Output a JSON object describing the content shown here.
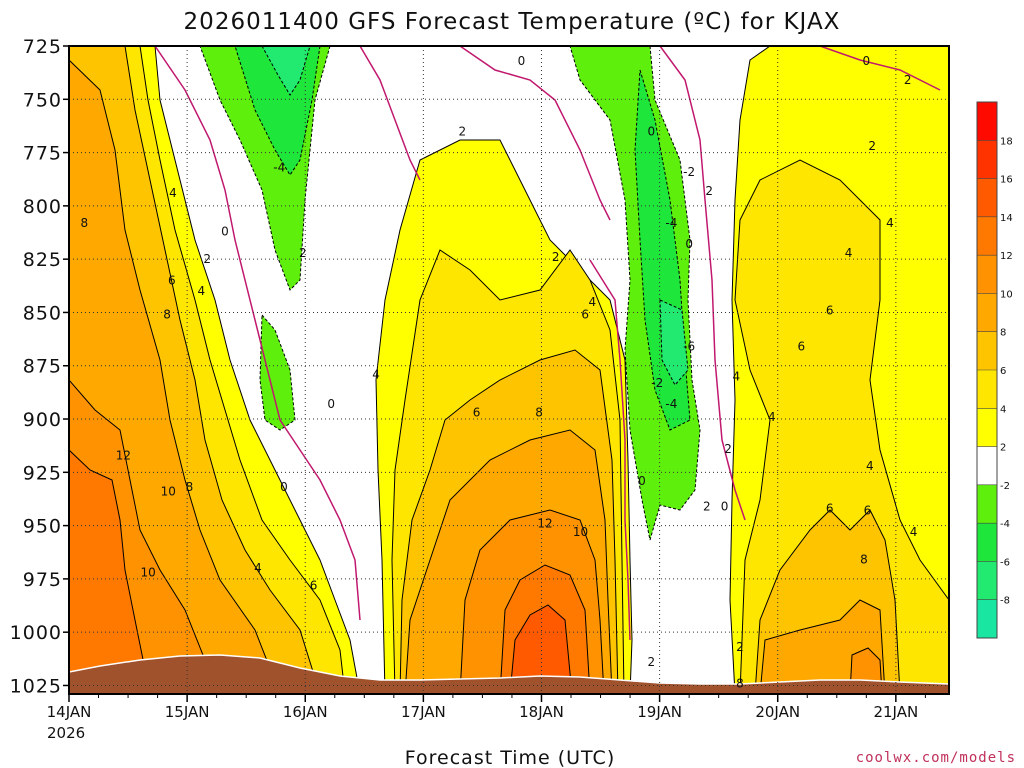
{
  "chart_data": {
    "type": "heatmap",
    "title": "2026011400 GFS Forecast Temperature (ºC) for KJAX",
    "xlabel": "Forecast Time (UTC)",
    "ylabel": "",
    "credit": "coolwx.com/models",
    "x_ticks": [
      "14JAN",
      "15JAN",
      "16JAN",
      "17JAN",
      "18JAN",
      "19JAN",
      "20JAN",
      "21JAN"
    ],
    "x_year_label": "2026",
    "x_range_days": [
      0,
      7.45
    ],
    "y_ticks": [
      725,
      750,
      775,
      800,
      825,
      850,
      875,
      900,
      925,
      950,
      975,
      1000,
      1025
    ],
    "y_range_hpa": [
      725,
      1029
    ],
    "grid": true,
    "colorbar": {
      "levels": [
        -10,
        -8,
        -6,
        -4,
        -2,
        2,
        4,
        6,
        8,
        10,
        12,
        14,
        16,
        18,
        20
      ],
      "tick_labels": [
        "-8",
        "-6",
        "-4",
        "-2",
        "2",
        "4",
        "6",
        "8",
        "10",
        "12",
        "14",
        "16",
        "18"
      ],
      "colors": [
        "#19e6a0",
        "#22ea70",
        "#1ee63a",
        "#5ef00c",
        "#ffffff",
        "#ffff00",
        "#ffe600",
        "#ffc400",
        "#ffa800",
        "#ff9200",
        "#ff7800",
        "#ff5a00",
        "#ff3300",
        "#ff0a00"
      ]
    },
    "contour_labels": [
      {
        "text": "0",
        "day": 1.32,
        "p": 812
      },
      {
        "text": "0",
        "day": 1.82,
        "p": 932
      },
      {
        "text": "0",
        "day": 2.22,
        "p": 893
      },
      {
        "text": "0",
        "day": 3.83,
        "p": 732
      },
      {
        "text": "0",
        "day": 4.93,
        "p": 765
      },
      {
        "text": "0",
        "day": 5.25,
        "p": 818
      },
      {
        "text": "0",
        "day": 4.85,
        "p": 929
      },
      {
        "text": "0",
        "day": 5.55,
        "p": 941
      },
      {
        "text": "0",
        "day": 6.75,
        "p": 732
      },
      {
        "text": "-4",
        "day": 1.78,
        "p": 782
      },
      {
        "text": "-4",
        "day": 5.1,
        "p": 808
      },
      {
        "text": "-4",
        "day": 5.1,
        "p": 893
      },
      {
        "text": "-2",
        "day": 5.25,
        "p": 784
      },
      {
        "text": "-2",
        "day": 4.98,
        "p": 883
      },
      {
        "text": "-6",
        "day": 5.25,
        "p": 866
      },
      {
        "text": "2",
        "day": 1.17,
        "p": 825
      },
      {
        "text": "2",
        "day": 1.98,
        "p": 822
      },
      {
        "text": "2",
        "day": 3.33,
        "p": 765
      },
      {
        "text": "2",
        "day": 4.12,
        "p": 824
      },
      {
        "text": "2",
        "day": 5.42,
        "p": 793
      },
      {
        "text": "2",
        "day": 5.58,
        "p": 914
      },
      {
        "text": "2",
        "day": 6.8,
        "p": 772
      },
      {
        "text": "2",
        "day": 7.1,
        "p": 741
      },
      {
        "text": "2",
        "day": 5.4,
        "p": 941
      },
      {
        "text": "2",
        "day": 4.93,
        "p": 1014
      },
      {
        "text": "2",
        "day": 5.68,
        "p": 1007
      },
      {
        "text": "4",
        "day": 0.88,
        "p": 794
      },
      {
        "text": "4",
        "day": 1.12,
        "p": 840
      },
      {
        "text": "4",
        "day": 2.6,
        "p": 879
      },
      {
        "text": "4",
        "day": 4.43,
        "p": 845
      },
      {
        "text": "4",
        "day": 5.95,
        "p": 899
      },
      {
        "text": "4",
        "day": 6.6,
        "p": 822
      },
      {
        "text": "4",
        "day": 6.78,
        "p": 922
      },
      {
        "text": "4",
        "day": 6.95,
        "p": 808
      },
      {
        "text": "4",
        "day": 7.15,
        "p": 953
      },
      {
        "text": "4",
        "day": 5.65,
        "p": 880
      },
      {
        "text": "4",
        "day": 1.6,
        "p": 970
      },
      {
        "text": "6",
        "day": 0.87,
        "p": 835
      },
      {
        "text": "6",
        "day": 3.45,
        "p": 897
      },
      {
        "text": "6",
        "day": 4.37,
        "p": 851
      },
      {
        "text": "6",
        "day": 6.2,
        "p": 866
      },
      {
        "text": "6",
        "day": 6.44,
        "p": 849
      },
      {
        "text": "6",
        "day": 6.44,
        "p": 942
      },
      {
        "text": "6",
        "day": 6.76,
        "p": 943
      },
      {
        "text": "6",
        "day": 2.07,
        "p": 978
      },
      {
        "text": "8",
        "day": 0.13,
        "p": 808
      },
      {
        "text": "8",
        "day": 0.83,
        "p": 851
      },
      {
        "text": "8",
        "day": 3.98,
        "p": 897
      },
      {
        "text": "8",
        "day": 1.02,
        "p": 932
      },
      {
        "text": "8",
        "day": 6.73,
        "p": 966
      },
      {
        "text": "8",
        "day": 5.68,
        "p": 1024
      },
      {
        "text": "10",
        "day": 0.84,
        "p": 934
      },
      {
        "text": "10",
        "day": 4.33,
        "p": 953
      },
      {
        "text": "10",
        "day": 0.67,
        "p": 972
      },
      {
        "text": "12",
        "day": 0.46,
        "p": 917
      },
      {
        "text": "12",
        "day": 4.03,
        "p": 949
      }
    ]
  }
}
